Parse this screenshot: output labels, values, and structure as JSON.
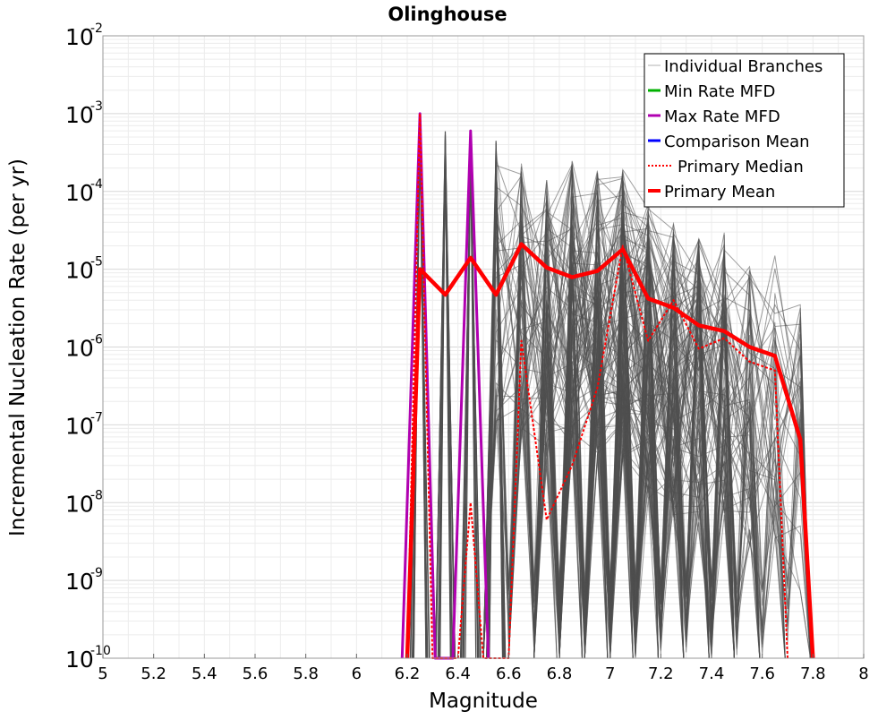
{
  "chart_data": {
    "type": "line",
    "title": "Olinghouse",
    "xlabel": "Magnitude",
    "ylabel": "Incremental Nucleation Rate (per yr)",
    "xlim": [
      5,
      8
    ],
    "ylim": [
      1e-10,
      0.01
    ],
    "yscale": "log",
    "grid": true,
    "legend_position": "top-right",
    "x_ticks": [
      "5",
      "5.2",
      "5.4",
      "5.6",
      "5.8",
      "6",
      "6.2",
      "6.4",
      "6.6",
      "6.8",
      "7",
      "7.2",
      "7.4",
      "7.6",
      "7.8",
      "8"
    ],
    "y_ticks": [
      {
        "base": "10",
        "exp": "-10"
      },
      {
        "base": "10",
        "exp": "-9"
      },
      {
        "base": "10",
        "exp": "-8"
      },
      {
        "base": "10",
        "exp": "-7"
      },
      {
        "base": "10",
        "exp": "-6"
      },
      {
        "base": "10",
        "exp": "-5"
      },
      {
        "base": "10",
        "exp": "-4"
      },
      {
        "base": "10",
        "exp": "-3"
      },
      {
        "base": "10",
        "exp": "-2"
      }
    ],
    "legend": [
      {
        "label": "Individual Branches",
        "color": "#b0b0b0",
        "style": "thin"
      },
      {
        "label": "Min Rate MFD",
        "color": "#00b000",
        "style": "solid"
      },
      {
        "label": "Max Rate MFD",
        "color": "#b000b0",
        "style": "solid"
      },
      {
        "label": "Comparison Mean",
        "color": "#0000ff",
        "style": "solid"
      },
      {
        "label": "Primary Median",
        "color": "#ff0000",
        "style": "dotted"
      },
      {
        "label": "Primary Mean",
        "color": "#ff0000",
        "style": "thick"
      }
    ],
    "series": [
      {
        "name": "Primary Mean",
        "color": "#ff0000",
        "x": [
          6.2,
          6.25,
          6.35,
          6.45,
          6.55,
          6.65,
          6.75,
          6.85,
          6.95,
          7.05,
          7.15,
          7.25,
          7.35,
          7.45,
          7.55,
          7.65,
          7.75,
          7.8
        ],
        "y": [
          1e-10,
          1e-05,
          4.7e-06,
          1.4e-05,
          4.7e-06,
          2.1e-05,
          1.05e-05,
          7.9e-06,
          9.5e-06,
          1.8e-05,
          4.2e-06,
          3.2e-06,
          1.9e-06,
          1.6e-06,
          1e-06,
          7.7e-07,
          6.5e-08,
          1e-10
        ]
      },
      {
        "name": "Primary Median",
        "color": "#ff0000",
        "x": [
          6.2,
          6.25,
          6.3,
          6.4,
          6.45,
          6.5,
          6.6,
          6.65,
          6.75,
          6.85,
          6.95,
          7.05,
          7.15,
          7.25,
          7.35,
          7.45,
          7.55,
          7.65,
          7.7
        ],
        "y": [
          1e-10,
          0.001,
          1e-10,
          1e-10,
          1e-08,
          1e-10,
          1e-10,
          1.2e-06,
          6e-09,
          3e-08,
          3e-07,
          2e-05,
          1.2e-06,
          4e-06,
          9.5e-07,
          1.3e-06,
          6.5e-07,
          5e-07,
          1e-10
        ]
      },
      {
        "name": "Max Rate MFD",
        "color": "#b000b0",
        "x": [
          6.18,
          6.25,
          6.31,
          6.38,
          6.45,
          6.52
        ],
        "y": [
          1e-10,
          0.001,
          1e-10,
          1e-10,
          0.0006,
          1e-10
        ]
      }
    ]
  }
}
